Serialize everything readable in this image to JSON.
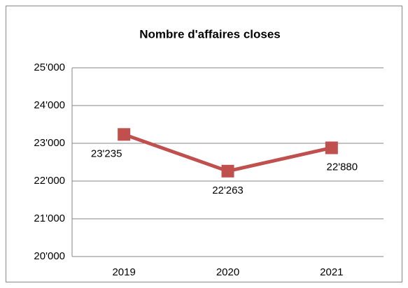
{
  "chart_data": {
    "type": "line",
    "title": "Nombre d'affaires closes",
    "categories": [
      "2019",
      "2020",
      "2021"
    ],
    "series": [
      {
        "name": "Nombre d'affaires closes",
        "color": "#c0504d",
        "values": [
          23235,
          22263,
          22880
        ],
        "value_labels": [
          "23'235",
          "22'263",
          "22'880"
        ]
      }
    ],
    "ylim": [
      20000,
      25000
    ],
    "yticks": [
      {
        "value": 20000,
        "label": "20'000"
      },
      {
        "value": 21000,
        "label": "21'000"
      },
      {
        "value": 22000,
        "label": "22'000"
      },
      {
        "value": 23000,
        "label": "23'000"
      },
      {
        "value": 24000,
        "label": "24'000"
      },
      {
        "value": 25000,
        "label": "25'000"
      }
    ],
    "grid": true
  }
}
